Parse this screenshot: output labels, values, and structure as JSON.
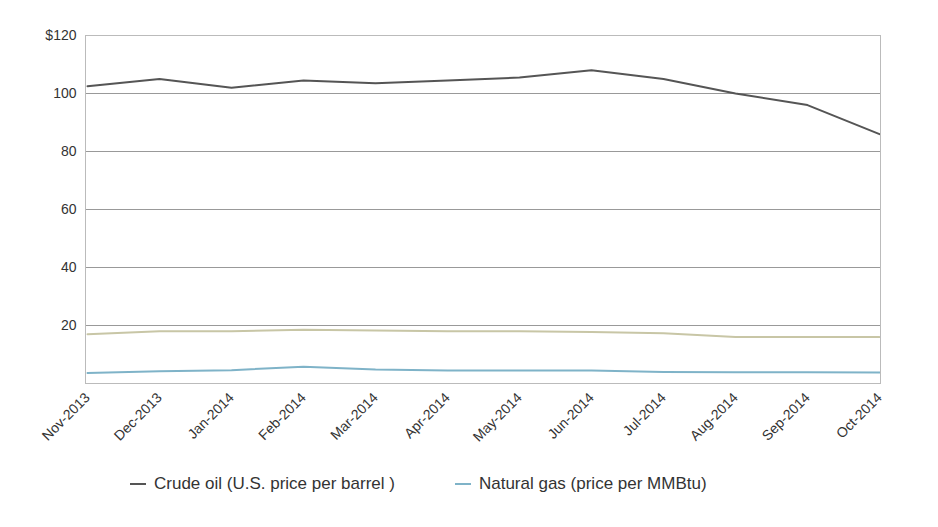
{
  "chart_data": {
    "type": "line",
    "x": [
      "Nov-2013",
      "Dec-2013",
      "Jan-2014",
      "Feb-2014",
      "Mar-2014",
      "Apr-2014",
      "May-2014",
      "Jun-2014",
      "Jul-2014",
      "Aug-2014",
      "Sep-2014",
      "Oct-2014"
    ],
    "series": [
      {
        "name": "Crude oil (U.S. price per barrel )",
        "color": "#555555",
        "values": [
          102.5,
          105,
          102,
          104.5,
          103.5,
          104.5,
          105.5,
          108,
          105,
          100,
          96,
          86
        ]
      },
      {
        "color": "#c8c6a6",
        "values": [
          17,
          18,
          18,
          18.5,
          18.3,
          18,
          18,
          17.8,
          17.3,
          16,
          16,
          16
        ]
      },
      {
        "name": "Natural gas (price per MMBtu)",
        "color": "#7fb3c8",
        "values": [
          3.6,
          4.2,
          4.6,
          5.8,
          4.8,
          4.5,
          4.5,
          4.5,
          4.0,
          3.9,
          3.9,
          3.8
        ]
      }
    ],
    "ylim": [
      0,
      120
    ],
    "yticks": [
      20,
      40,
      60,
      80,
      100,
      {
        "value": 120,
        "label": "$120"
      }
    ],
    "grid": true
  }
}
